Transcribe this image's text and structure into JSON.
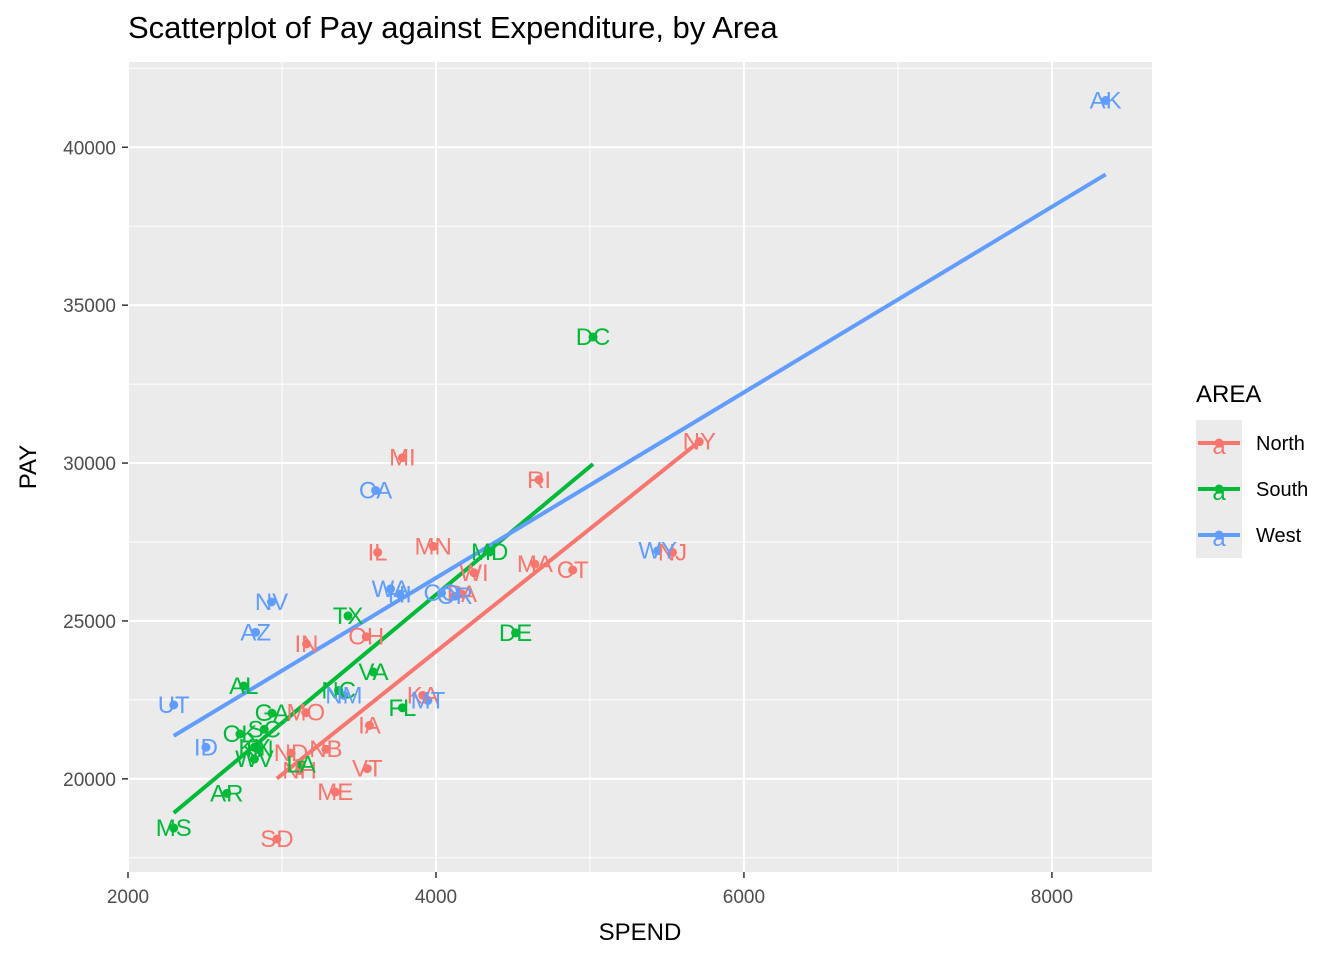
{
  "chart_data": {
    "type": "scatter",
    "title": "Scatterplot of Pay against Expenditure, by Area",
    "xlabel": "SPEND",
    "ylabel": "PAY",
    "xlim": [
      2000,
      8650
    ],
    "ylim": [
      17050,
      42700
    ],
    "xticks": [
      2000,
      4000,
      6000,
      8000
    ],
    "yticks": [
      20000,
      25000,
      30000,
      35000,
      40000
    ],
    "grid": true,
    "legend": {
      "title": "AREA",
      "position": "right"
    },
    "series": [
      {
        "name": "North",
        "color": "#F8766D",
        "points": [
          {
            "label": "ME",
            "x": 3346,
            "y": 19583
          },
          {
            "label": "NH",
            "x": 3114,
            "y": 20263
          },
          {
            "label": "VT",
            "x": 3554,
            "y": 20325
          },
          {
            "label": "MA",
            "x": 4642,
            "y": 26800
          },
          {
            "label": "RI",
            "x": 4669,
            "y": 29470
          },
          {
            "label": "CT",
            "x": 4888,
            "y": 26610
          },
          {
            "label": "NY",
            "x": 5710,
            "y": 30678
          },
          {
            "label": "NJ",
            "x": 5536,
            "y": 27170
          },
          {
            "label": "PA",
            "x": 4168,
            "y": 25853
          },
          {
            "label": "OH",
            "x": 3547,
            "y": 24500
          },
          {
            "label": "IN",
            "x": 3159,
            "y": 24274
          },
          {
            "label": "IL",
            "x": 3621,
            "y": 27170
          },
          {
            "label": "MI",
            "x": 3782,
            "y": 30168
          },
          {
            "label": "WI",
            "x": 4247,
            "y": 26525
          },
          {
            "label": "MN",
            "x": 3982,
            "y": 27360
          },
          {
            "label": "IA",
            "x": 3568,
            "y": 21690
          },
          {
            "label": "MO",
            "x": 3155,
            "y": 22094
          },
          {
            "label": "ND",
            "x": 3059,
            "y": 20816
          },
          {
            "label": "SD",
            "x": 2967,
            "y": 18095
          },
          {
            "label": "NB",
            "x": 3285,
            "y": 20939
          },
          {
            "label": "KA",
            "x": 3914,
            "y": 22644
          }
        ]
      },
      {
        "name": "South",
        "color": "#00BA38",
        "points": [
          {
            "label": "DE",
            "x": 4517,
            "y": 24624
          },
          {
            "label": "MD",
            "x": 4349,
            "y": 27186
          },
          {
            "label": "DC",
            "x": 5020,
            "y": 33990
          },
          {
            "label": "VA",
            "x": 3594,
            "y": 23382
          },
          {
            "label": "WV",
            "x": 2821,
            "y": 20627
          },
          {
            "label": "NC",
            "x": 3368,
            "y": 22795
          },
          {
            "label": "SC",
            "x": 2885,
            "y": 21570
          },
          {
            "label": "GA",
            "x": 2935,
            "y": 22080
          },
          {
            "label": "FL",
            "x": 3782,
            "y": 22250
          },
          {
            "label": "KY",
            "x": 2821,
            "y": 21000
          },
          {
            "label": "TN",
            "x": 2842,
            "y": 20940
          },
          {
            "label": "AL",
            "x": 2752,
            "y": 22940
          },
          {
            "label": "MS",
            "x": 2297,
            "y": 18443
          },
          {
            "label": "AR",
            "x": 2642,
            "y": 19538
          },
          {
            "label": "LA",
            "x": 3124,
            "y": 20460
          },
          {
            "label": "OK",
            "x": 2727,
            "y": 21419
          },
          {
            "label": "TX",
            "x": 3429,
            "y": 25160
          }
        ]
      },
      {
        "name": "West",
        "color": "#619CFF",
        "points": [
          {
            "label": "MT",
            "x": 3948,
            "y": 22482
          },
          {
            "label": "ID",
            "x": 2506,
            "y": 21000
          },
          {
            "label": "WY",
            "x": 5440,
            "y": 27224
          },
          {
            "label": "CO",
            "x": 4036,
            "y": 25892
          },
          {
            "label": "NM",
            "x": 3402,
            "y": 22644
          },
          {
            "label": "AZ",
            "x": 2829,
            "y": 24640
          },
          {
            "label": "UT",
            "x": 2297,
            "y": 22341
          },
          {
            "label": "NV",
            "x": 2932,
            "y": 25600
          },
          {
            "label": "WA",
            "x": 3705,
            "y": 26015
          },
          {
            "label": "OR",
            "x": 4123,
            "y": 25788
          },
          {
            "label": "CA",
            "x": 3608,
            "y": 29132
          },
          {
            "label": "AK",
            "x": 8349,
            "y": 41480
          },
          {
            "label": "HI",
            "x": 3766,
            "y": 25845
          }
        ]
      }
    ],
    "fit_lines": [
      {
        "name": "North",
        "x": [
          2967,
          5710
        ],
        "y": [
          20010,
          30680
        ]
      },
      {
        "name": "South",
        "x": [
          2297,
          5020
        ],
        "y": [
          18920,
          29970
        ]
      },
      {
        "name": "West",
        "x": [
          2297,
          8349
        ],
        "y": [
          21360,
          39140
        ]
      }
    ]
  }
}
